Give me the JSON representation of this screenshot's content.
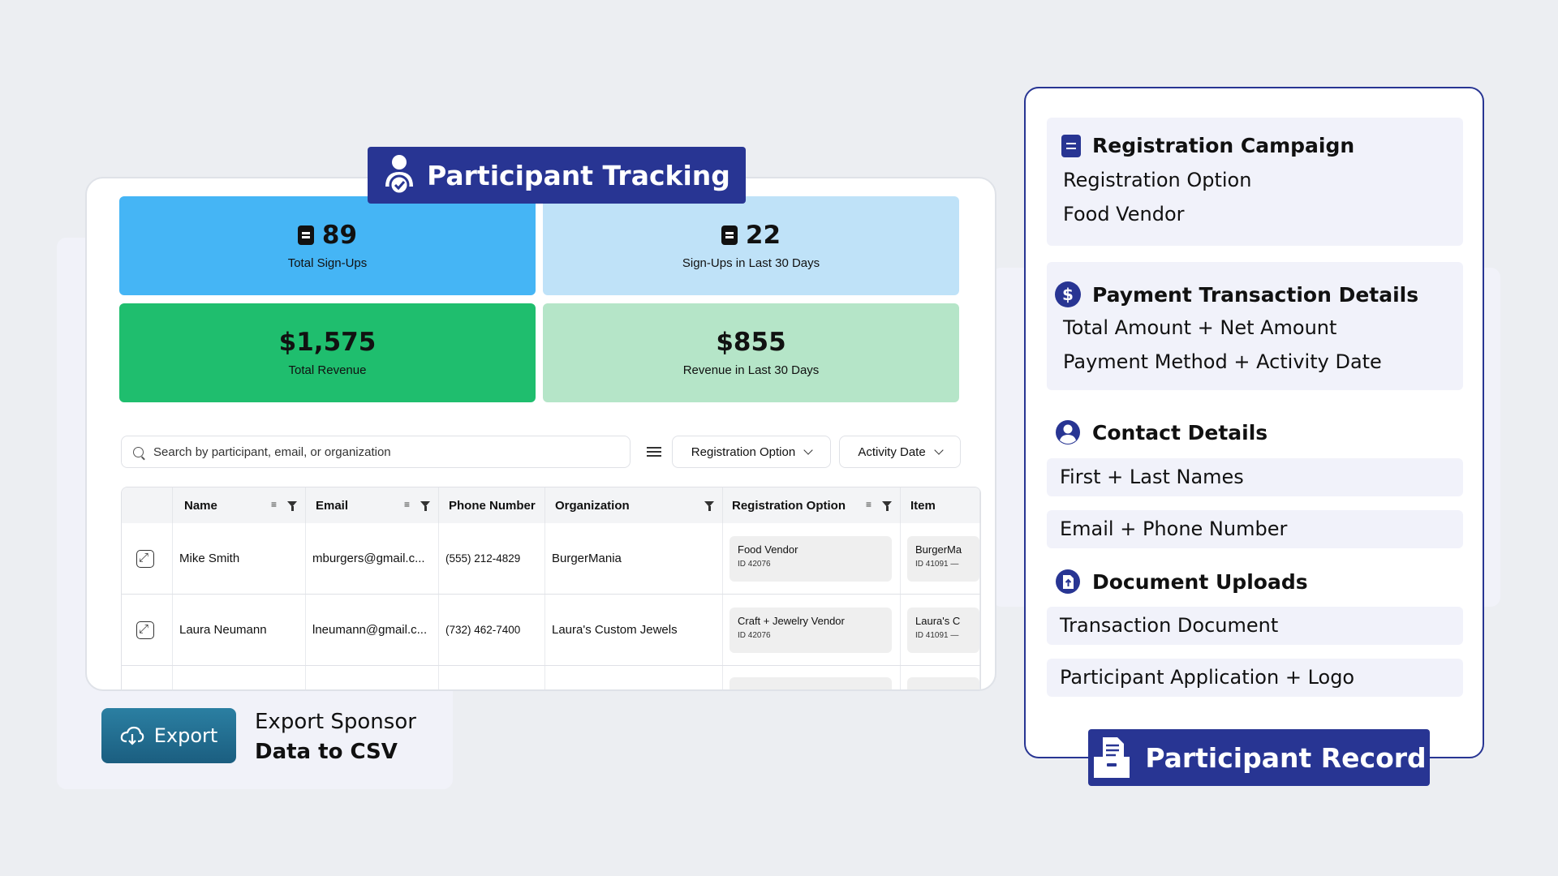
{
  "tracking": {
    "banner_title": "Participant Tracking",
    "stats": [
      {
        "value": "89",
        "label": "Total Sign-Ups",
        "color": "#45b5f5"
      },
      {
        "value": "22",
        "label": "Sign-Ups in Last 30 Days",
        "color": "#bfe2f8"
      },
      {
        "value": "$1,575",
        "label": "Total Revenue",
        "color": "#1fbe6e"
      },
      {
        "value": "$855",
        "label": "Revenue in Last 30 Days",
        "color": "#b5e5c8"
      }
    ],
    "search_placeholder": "Search by participant, email, or organization",
    "filters": {
      "registration_option": "Registration Option",
      "activity_date": "Activity Date"
    },
    "columns": [
      "Name",
      "Email",
      "Phone Number",
      "Organization",
      "Registration Option",
      "Item"
    ],
    "rows": [
      {
        "name": "Mike Smith",
        "email": "mburgers@gmail.c...",
        "phone": "(555) 212-4829",
        "organization": "BurgerMania",
        "option": "Food Vendor",
        "option_id": "ID 42076",
        "item": "BurgerMa",
        "item_id": "ID 41091 —"
      },
      {
        "name": "Laura Neumann",
        "email": "lneumann@gmail.c...",
        "phone": "(732) 462-7400",
        "organization": "Laura's Custom Jewels",
        "option": "Craft + Jewelry Vendor",
        "option_id": "ID 42076",
        "item": "Laura's C",
        "item_id": "ID 41091 —"
      }
    ]
  },
  "export": {
    "button_label": "Export",
    "desc_line1": "Export Sponsor",
    "desc_line2": "Data to CSV"
  },
  "record": {
    "banner_title": "Participant Record",
    "sections": {
      "registration": {
        "title": "Registration Campaign",
        "items": [
          "Registration Option",
          "Food Vendor"
        ]
      },
      "payment": {
        "title": "Payment Transaction Details",
        "icon_glyph": "$",
        "items": [
          "Total Amount + Net Amount",
          "Payment Method + Activity Date"
        ]
      },
      "contact": {
        "title": "Contact Details",
        "items": [
          "First + Last Names",
          "Email + Phone Number"
        ]
      },
      "documents": {
        "title": "Document Uploads",
        "items": [
          "Transaction Document",
          "Participant Application + Logo"
        ]
      }
    }
  },
  "colors": {
    "navy": "#283593",
    "export_teal": "#1f6f93",
    "background": "#eceef2"
  }
}
